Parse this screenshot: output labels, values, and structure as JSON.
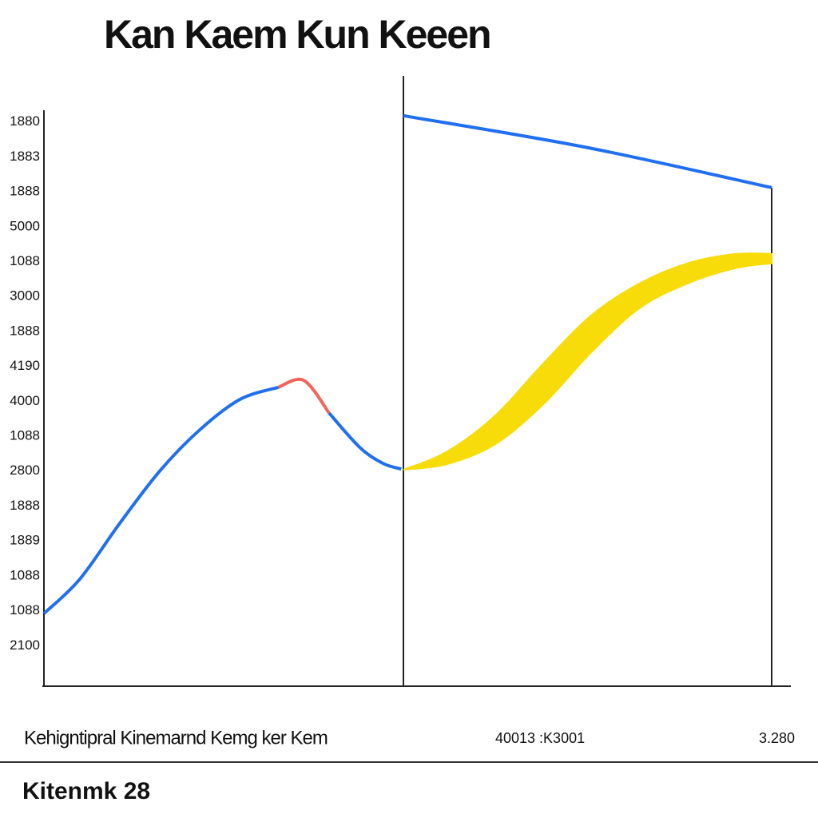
{
  "chart_data": {
    "type": "line",
    "title": "Kan Kaem Kun Keeen",
    "xlim": [
      0,
      10
    ],
    "ylim": [
      -1,
      16
    ],
    "yticks": [
      {
        "value": 15,
        "label": "1880"
      },
      {
        "value": 14,
        "label": "1883"
      },
      {
        "value": 13,
        "label": "1888"
      },
      {
        "value": 12,
        "label": "5000"
      },
      {
        "value": 11,
        "label": "1088"
      },
      {
        "value": 10,
        "label": "3000"
      },
      {
        "value": 9,
        "label": "1888"
      },
      {
        "value": 8,
        "label": "4190"
      },
      {
        "value": 7,
        "label": "4000"
      },
      {
        "value": 6,
        "label": "1088"
      },
      {
        "value": 5,
        "label": "2800"
      },
      {
        "value": 4,
        "label": "1888"
      },
      {
        "value": 3,
        "label": "1889"
      },
      {
        "value": 2,
        "label": "1088"
      },
      {
        "value": 1,
        "label": "1088"
      },
      {
        "value": 0,
        "label": "2100"
      }
    ],
    "series": [
      {
        "color": "#1f6ff0",
        "x": [
          0,
          0.49,
          1.04,
          1.59,
          2.14,
          2.69,
          3.22
        ],
        "values": [
          0.92,
          1.9,
          3.5,
          5.0,
          6.18,
          7.05,
          7.4
        ]
      },
      {
        "color": "#f0645a",
        "x": [
          3.22,
          3.57,
          3.92
        ],
        "values": [
          7.4,
          7.6,
          6.66
        ]
      },
      {
        "color": "#1f6ff0",
        "x": [
          3.92,
          4.34,
          4.66,
          4.91
        ],
        "values": [
          6.66,
          5.68,
          5.22,
          5.06
        ]
      },
      {
        "color": "#1f6ff0",
        "x": [
          4.94,
          7.46,
          10
        ],
        "values": [
          15.18,
          14.27,
          13.12
        ]
      },
      {
        "color": "#f7dc0a",
        "x": [
          4.94,
          5.54,
          6.2,
          6.86,
          7.52,
          8.18,
          8.84,
          9.5,
          10
        ],
        "values": [
          5.04,
          5.56,
          6.59,
          8.08,
          9.46,
          10.37,
          10.95,
          11.22,
          11.22
        ],
        "values_low": [
          5.04,
          5.2,
          5.77,
          6.91,
          8.4,
          9.66,
          10.37,
          10.81,
          10.95
        ]
      }
    ],
    "footer_labels": [
      "Kehigntipral Kinemarnd Kemg ker Kem",
      "40013 :K3001",
      "3.280"
    ],
    "caption": "Kitenmk 28"
  }
}
